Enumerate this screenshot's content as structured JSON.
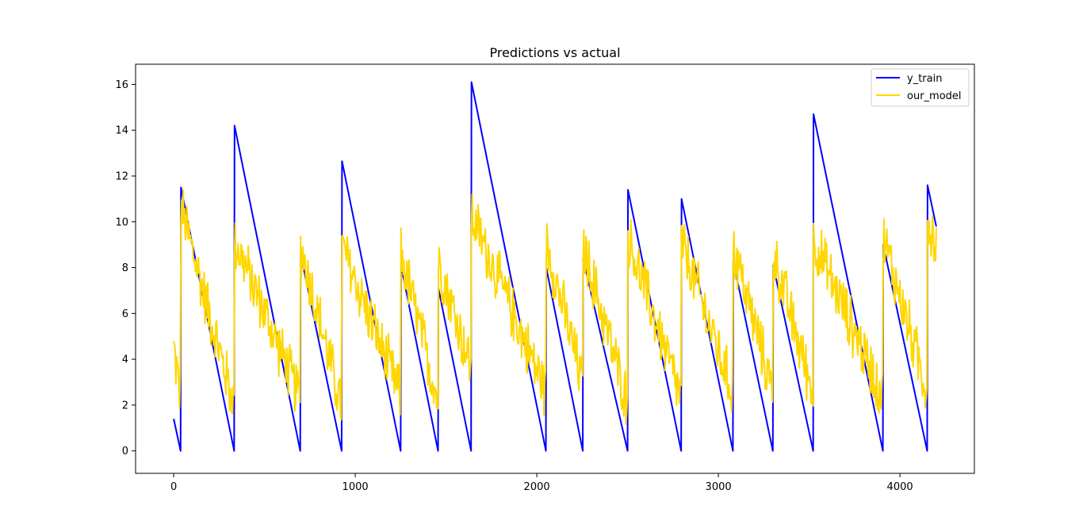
{
  "chart_data": {
    "type": "line",
    "title": "Predictions vs actual",
    "xlabel": "",
    "ylabel": "",
    "xlim": [
      -210,
      4410
    ],
    "ylim": [
      -0.98,
      16.88
    ],
    "xticks": [
      0,
      1000,
      2000,
      3000,
      4000
    ],
    "yticks": [
      0,
      2,
      4,
      6,
      8,
      10,
      12,
      14,
      16
    ],
    "grid": false,
    "legend_position": "top-right",
    "series": [
      {
        "name": "y_train",
        "color": "#0000ff",
        "points": [
          [
            0,
            1.4
          ],
          [
            38,
            0.0
          ],
          [
            40,
            11.5
          ],
          [
            333,
            0.0
          ],
          [
            335,
            14.2
          ],
          [
            697,
            0.0
          ],
          [
            699,
            8.6
          ],
          [
            925,
            0.0
          ],
          [
            927,
            12.65
          ],
          [
            1250,
            0.0
          ],
          [
            1252,
            8.1
          ],
          [
            1456,
            0.0
          ],
          [
            1458,
            7.1
          ],
          [
            1638,
            0.0
          ],
          [
            1640,
            16.1
          ],
          [
            2050,
            0.0
          ],
          [
            2052,
            8.0
          ],
          [
            2253,
            0.0
          ],
          [
            2255,
            8.4
          ],
          [
            2500,
            0.0
          ],
          [
            2502,
            11.4
          ],
          [
            2795,
            0.0
          ],
          [
            2797,
            11.0
          ],
          [
            3080,
            0.0
          ],
          [
            3082,
            8.3
          ],
          [
            3300,
            0.0
          ],
          [
            3302,
            8.1
          ],
          [
            3522,
            0.0
          ],
          [
            3524,
            14.7
          ],
          [
            3906,
            0.0
          ],
          [
            3908,
            9.0
          ],
          [
            4150,
            0.0
          ],
          [
            4152,
            11.6
          ],
          [
            4200,
            9.8
          ]
        ]
      },
      {
        "name": "our_model",
        "color": "#ffd700",
        "segments": [
          [
            0,
            38,
            4.5,
            2.3
          ],
          [
            40,
            333,
            10.6,
            2.0
          ],
          [
            335,
            697,
            9.2,
            2.3
          ],
          [
            699,
            925,
            9.0,
            1.9
          ],
          [
            927,
            1250,
            8.9,
            2.4
          ],
          [
            1252,
            1456,
            8.6,
            2.2
          ],
          [
            1458,
            1638,
            8.3,
            3.6
          ],
          [
            1640,
            2050,
            10.3,
            2.6
          ],
          [
            2052,
            2253,
            9.1,
            2.9
          ],
          [
            2255,
            2500,
            8.9,
            2.1
          ],
          [
            2502,
            2795,
            9.3,
            2.3
          ],
          [
            2797,
            3080,
            9.1,
            2.5
          ],
          [
            3082,
            3300,
            8.9,
            2.6
          ],
          [
            3302,
            3522,
            8.6,
            2.5
          ],
          [
            3524,
            3906,
            9.2,
            2.4
          ],
          [
            3908,
            4150,
            9.3,
            2.6
          ],
          [
            4152,
            4200,
            10.0,
            9.0
          ]
        ],
        "noise": 1.1
      }
    ]
  }
}
